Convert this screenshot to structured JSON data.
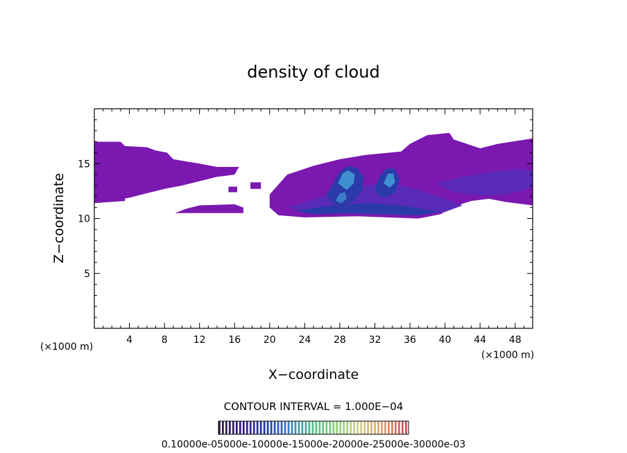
{
  "chart_data": {
    "type": "heatmap",
    "title": "density of cloud",
    "xlabel": "X−coordinate",
    "ylabel": "Z−coordinate",
    "x_unit_left": "(×1000 m)",
    "x_unit_right": "(×1000 m)",
    "xlim": [
      0,
      50
    ],
    "ylim": [
      0,
      20
    ],
    "x_ticks": [
      4,
      8,
      12,
      16,
      20,
      24,
      28,
      32,
      36,
      40,
      44,
      48
    ],
    "y_ticks": [
      5,
      10,
      15
    ],
    "x_tick_labels": [
      "4",
      "8",
      "12",
      "16",
      "20",
      "24",
      "28",
      "32",
      "36",
      "40",
      "44",
      "48"
    ],
    "y_tick_labels": [
      "5",
      "10",
      "15"
    ],
    "contour_interval_label": "CONTOUR INTERVAL =  1.000E−04",
    "colorbar": {
      "min": 0.0001,
      "max": 0.0035,
      "label_text": "0.10000e-05000e-10000e-15000e-20000e-25000e-30000e-03",
      "colors": [
        "#2b1a3d",
        "#3a1a8a",
        "#1e3aa8",
        "#3a7cc8",
        "#4fc08a",
        "#8ad07a",
        "#d0d08a",
        "#e0a070",
        "#d05050"
      ]
    },
    "regions": [
      {
        "name": "cloud-upper-left",
        "level": 0.0004,
        "color": "#7a18b0",
        "points": [
          [
            0,
            17
          ],
          [
            3,
            17
          ],
          [
            3.5,
            16.6
          ],
          [
            6,
            16.5
          ],
          [
            7,
            16.2
          ],
          [
            8.3,
            16
          ],
          [
            9,
            15.4
          ],
          [
            12,
            15
          ],
          [
            14,
            14.7
          ],
          [
            16.5,
            14.7
          ],
          [
            16,
            14
          ],
          [
            14,
            13.8
          ],
          [
            12,
            13.4
          ],
          [
            10,
            13
          ],
          [
            8,
            12.7
          ],
          [
            6,
            12.3
          ],
          [
            4,
            11.9
          ],
          [
            2,
            11.6
          ],
          [
            0,
            11.4
          ]
        ]
      },
      {
        "name": "cloud-left-patch",
        "level": 0.0004,
        "color": "#7a18b0",
        "points": [
          [
            0,
            11.8
          ],
          [
            1.5,
            11.6
          ],
          [
            1.5,
            12.5
          ],
          [
            3.5,
            12.5
          ],
          [
            3.5,
            11.6
          ],
          [
            0,
            11.4
          ]
        ]
      },
      {
        "name": "cloud-lower-left",
        "level": 0.0004,
        "color": "#7a18b0",
        "points": [
          [
            9.2,
            10.5
          ],
          [
            10.5,
            10.9
          ],
          [
            12,
            11.2
          ],
          [
            16,
            11.3
          ],
          [
            17,
            11
          ],
          [
            17,
            10.5
          ]
        ]
      },
      {
        "name": "cloud-small-1",
        "level": 0.0004,
        "color": "#7a18b0",
        "points": [
          [
            15.3,
            12.9
          ],
          [
            16.3,
            12.9
          ],
          [
            16.3,
            12.4
          ],
          [
            15.3,
            12.4
          ]
        ]
      },
      {
        "name": "cloud-small-2",
        "level": 0.0004,
        "color": "#7a18b0",
        "points": [
          [
            17.8,
            13.3
          ],
          [
            19,
            13.3
          ],
          [
            19,
            12.7
          ],
          [
            17.8,
            12.7
          ]
        ]
      },
      {
        "name": "cloud-main",
        "level": 0.0005,
        "color": "#7a18b0",
        "points": [
          [
            20,
            12.2
          ],
          [
            22,
            14
          ],
          [
            25,
            14.8
          ],
          [
            28,
            15.4
          ],
          [
            31,
            15.8
          ],
          [
            35,
            16.1
          ],
          [
            36,
            16.8
          ],
          [
            38,
            17.6
          ],
          [
            40.5,
            17.8
          ],
          [
            41,
            17.2
          ],
          [
            44,
            16.4
          ],
          [
            46,
            16.8
          ],
          [
            50,
            17.3
          ],
          [
            50,
            11.2
          ],
          [
            47,
            11.5
          ],
          [
            45,
            11.8
          ],
          [
            43,
            11.6
          ],
          [
            41,
            11.1
          ],
          [
            39.5,
            10.4
          ],
          [
            37,
            10
          ],
          [
            30,
            10.2
          ],
          [
            24,
            10.1
          ],
          [
            21,
            10.3
          ],
          [
            20,
            11
          ]
        ]
      },
      {
        "name": "cloud-main-inner",
        "level": 0.0008,
        "color": "#5a2ab8",
        "points": [
          [
            22,
            11
          ],
          [
            26,
            12
          ],
          [
            29,
            12.8
          ],
          [
            31,
            13
          ],
          [
            34,
            13.2
          ],
          [
            37,
            12.6
          ],
          [
            40,
            11.8
          ],
          [
            42,
            11.2
          ],
          [
            40,
            10.6
          ],
          [
            36,
            10.3
          ],
          [
            30,
            10.4
          ],
          [
            24,
            10.5
          ]
        ]
      },
      {
        "name": "cloud-right-inner",
        "level": 0.0008,
        "color": "#5a2ab8",
        "points": [
          [
            39,
            13.2
          ],
          [
            42,
            13.8
          ],
          [
            45,
            14.2
          ],
          [
            48,
            14.5
          ],
          [
            50,
            14.4
          ],
          [
            50,
            12.8
          ],
          [
            47,
            12.2
          ],
          [
            44,
            12.1
          ],
          [
            41,
            12.4
          ]
        ]
      },
      {
        "name": "cloud-core-left",
        "level": 0.0012,
        "color": "#2a3aa8",
        "points": [
          [
            26.5,
            12.2
          ],
          [
            27.3,
            13.3
          ],
          [
            28,
            14.3
          ],
          [
            29,
            14.8
          ],
          [
            30,
            14.6
          ],
          [
            30.7,
            13.8
          ],
          [
            30.5,
            12.5
          ],
          [
            29.5,
            11.5
          ],
          [
            28,
            11.2
          ],
          [
            27,
            11.5
          ]
        ]
      },
      {
        "name": "cloud-core-right",
        "level": 0.0012,
        "color": "#2a3aa8",
        "points": [
          [
            32,
            12.8
          ],
          [
            32.6,
            13.9
          ],
          [
            33.4,
            14.6
          ],
          [
            34.3,
            14.5
          ],
          [
            34.8,
            13.6
          ],
          [
            34.4,
            12.4
          ],
          [
            33.2,
            11.9
          ],
          [
            32.3,
            12.2
          ]
        ]
      },
      {
        "name": "cloud-band",
        "level": 0.0012,
        "color": "#2a3aa8",
        "points": [
          [
            23,
            10.7
          ],
          [
            27,
            11.2
          ],
          [
            31,
            11.4
          ],
          [
            35,
            11.2
          ],
          [
            38,
            10.8
          ],
          [
            39.5,
            10.6
          ],
          [
            37,
            10.3
          ],
          [
            30,
            10.5
          ],
          [
            25,
            10.4
          ]
        ]
      },
      {
        "name": "cloud-peak-left",
        "level": 0.002,
        "color": "#3f8fd0",
        "points": [
          [
            27.8,
            13.2
          ],
          [
            28.3,
            14.1
          ],
          [
            29,
            14.4
          ],
          [
            29.7,
            14
          ],
          [
            29.6,
            13.2
          ],
          [
            28.8,
            12.6
          ]
        ]
      },
      {
        "name": "cloud-peak-right",
        "level": 0.002,
        "color": "#3f8fd0",
        "points": [
          [
            33,
            13.2
          ],
          [
            33.5,
            14.1
          ],
          [
            34.1,
            14.1
          ],
          [
            34.3,
            13.3
          ],
          [
            33.7,
            12.8
          ]
        ]
      },
      {
        "name": "cloud-peak-low",
        "level": 0.0018,
        "color": "#3a7cc8",
        "points": [
          [
            27.5,
            11.6
          ],
          [
            28,
            12.3
          ],
          [
            28.6,
            12.4
          ],
          [
            28.8,
            11.8
          ],
          [
            28.2,
            11.4
          ]
        ]
      }
    ]
  }
}
